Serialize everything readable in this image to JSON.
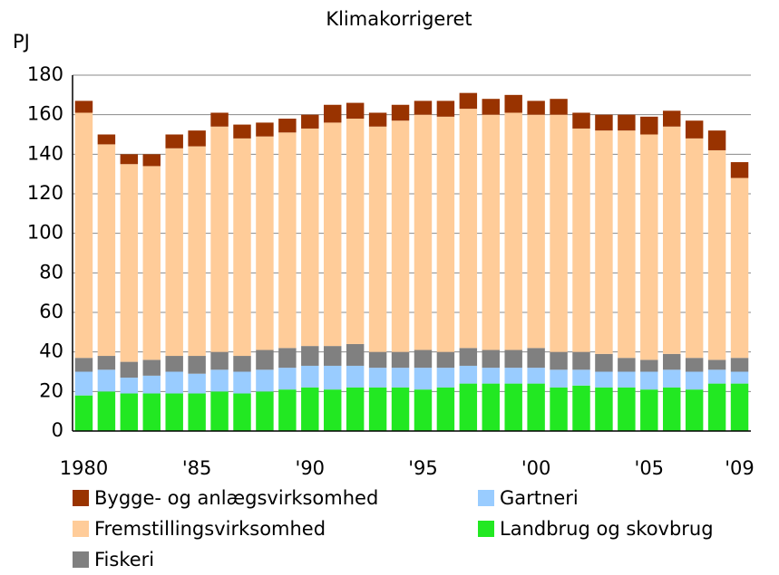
{
  "chart_data": {
    "type": "stacked_bar",
    "title": "Klimakorrigeret",
    "y_label": "PJ",
    "categories": [
      "1980",
      null,
      null,
      null,
      null,
      "'85",
      null,
      null,
      null,
      null,
      "'90",
      null,
      null,
      null,
      null,
      "'95",
      null,
      null,
      null,
      null,
      "'00",
      null,
      null,
      null,
      null,
      "'05",
      null,
      null,
      null,
      "'09"
    ],
    "series": [
      {
        "name": "Landbrug og skovbrug",
        "color": "#22e822",
        "values": [
          18,
          20,
          19,
          19,
          19,
          19,
          20,
          19,
          20,
          21,
          22,
          21,
          22,
          22,
          22,
          21,
          22,
          24,
          24,
          24,
          24,
          22,
          23,
          22,
          22,
          21,
          22,
          21,
          24,
          24
        ]
      },
      {
        "name": "Gartneri",
        "color": "#99ccff",
        "values": [
          12,
          11,
          8,
          9,
          11,
          10,
          11,
          11,
          11,
          11,
          11,
          12,
          11,
          10,
          10,
          11,
          10,
          9,
          8,
          8,
          8,
          9,
          8,
          8,
          8,
          9,
          9,
          9,
          7,
          6
        ]
      },
      {
        "name": "Fiskeri",
        "color": "#808080",
        "values": [
          7,
          7,
          8,
          8,
          8,
          9,
          9,
          8,
          10,
          10,
          10,
          10,
          11,
          8,
          8,
          9,
          8,
          9,
          9,
          9,
          10,
          9,
          9,
          9,
          7,
          6,
          8,
          7,
          5,
          7
        ]
      },
      {
        "name": "Fremstillingsvirksomhed",
        "color": "#ffcc99",
        "values": [
          124,
          107,
          100,
          98,
          105,
          106,
          114,
          110,
          108,
          109,
          110,
          113,
          114,
          114,
          117,
          119,
          119,
          121,
          119,
          120,
          118,
          120,
          113,
          113,
          115,
          114,
          115,
          111,
          106,
          91
        ]
      },
      {
        "name": "Bygge- og anlægsvirksomhed",
        "color": "#993300",
        "values": [
          6,
          5,
          5,
          6,
          7,
          8,
          7,
          7,
          7,
          7,
          7,
          9,
          8,
          7,
          8,
          7,
          8,
          8,
          8,
          9,
          7,
          8,
          8,
          8,
          8,
          9,
          8,
          9,
          10,
          8
        ]
      }
    ],
    "ylim": [
      0,
      180
    ],
    "yticks": [
      0,
      20,
      40,
      60,
      80,
      100,
      120,
      140,
      160,
      180
    ],
    "grid": true
  }
}
